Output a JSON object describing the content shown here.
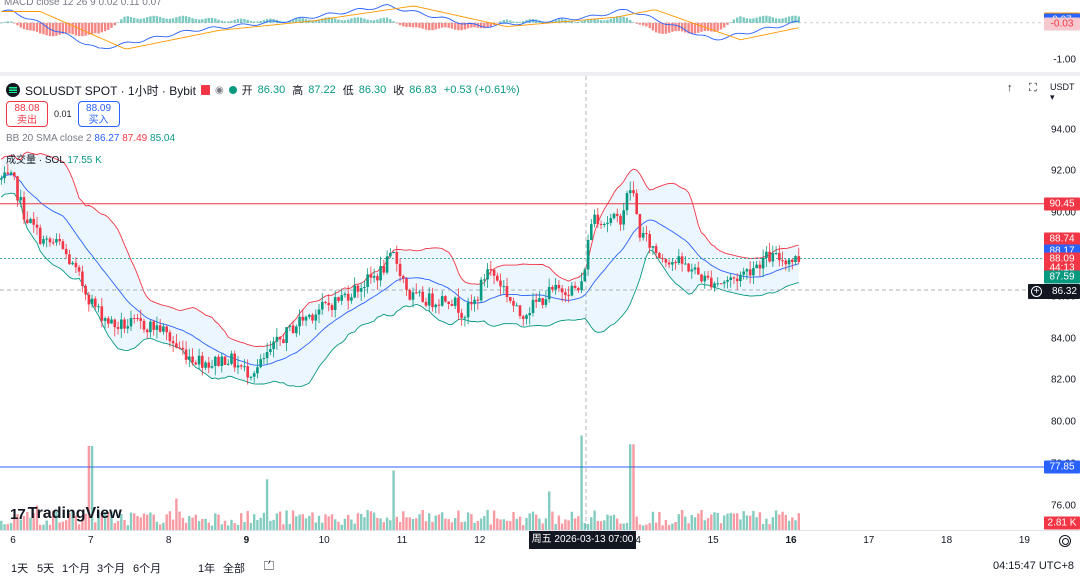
{
  "macd": {
    "legend_fragment": "MACD close 12 26 9",
    "values": [
      "0.02",
      "0.11",
      "0.07"
    ],
    "axis": [
      "-1.00"
    ],
    "pills": [
      {
        "text": "0.10",
        "color": "#ff9800",
        "price": 0.1
      },
      {
        "text": "0.07",
        "color": "#2962ff",
        "price": 0.07
      },
      {
        "text": "-0.03",
        "color": "#f7c9cf",
        "text_color": "#f23645",
        "price": -0.03
      }
    ]
  },
  "legend": {
    "symbol": "SOLUSDT SPOT · 1小时 · Bybit",
    "open_label": "开",
    "open": "86.30",
    "high_label": "高",
    "high": "87.22",
    "low_label": "低",
    "low": "86.30",
    "close_label": "收",
    "close": "86.83",
    "change": "+0.53 (+0.61%)"
  },
  "trade": {
    "sell_price": "88.08",
    "sell_label": "卖出",
    "spread": "0.01",
    "buy_price": "88.09",
    "buy_label": "买入"
  },
  "bb": {
    "label": "BB 20 SMA close 2",
    "basis": "86.27",
    "upper": "87.49",
    "lower": "85.04"
  },
  "volume": {
    "label": "成交量 · SOL",
    "value": "17.55 K",
    "pill": "2.81 K"
  },
  "price_axis": {
    "currency": "USDT",
    "ticks": [
      "94.00",
      "92.00",
      "90.00",
      "88.00",
      "86.00",
      "84.00",
      "82.00",
      "80.00",
      "78.00",
      "76.00"
    ],
    "pills": [
      {
        "text": "90.45",
        "color": "#f23645",
        "price": 90.45
      },
      {
        "text": "88.74",
        "color": "#f23645",
        "price": 88.74
      },
      {
        "text": "88.17",
        "color": "#2962ff",
        "price": 88.17
      },
      {
        "text": "88.09",
        "color": "#f23645",
        "price": 87.82
      },
      {
        "text": "44:13",
        "color": "#f23645",
        "price": 87.38
      },
      {
        "text": "87.59",
        "color": "#089981",
        "price": 86.92
      },
      {
        "text": "77.85",
        "color": "#2962ff",
        "price": 77.85
      }
    ],
    "crosshair_price": "86.32",
    "hlines": [
      {
        "price": 90.45,
        "color": "#f23645"
      },
      {
        "price": 77.85,
        "color": "#2962ff"
      }
    ]
  },
  "time_axis": {
    "ticks": [
      "6",
      "7",
      "8",
      "9",
      "10",
      "11",
      "12",
      "14",
      "15",
      "16",
      "17",
      "18",
      "19"
    ],
    "crosshair_time": "周五 2026-03-13   07:00"
  },
  "branding": {
    "name": "TradingView"
  },
  "bottom_bar": {
    "ranges": [
      "1天",
      "5天",
      "1个月",
      "3个月",
      "6个月",
      "1年",
      "全部"
    ],
    "clock": "04:15:47 UTC+8"
  },
  "colors": {
    "up": "#089981",
    "down": "#f23645",
    "bb_upper": "#f23645",
    "bb_basis": "#2962ff",
    "bb_lower": "#089981",
    "bb_fill": "#2196f3"
  },
  "chart_data": {
    "type": "candlestick",
    "interval": "1h",
    "candles_per_day": 24,
    "x_start_day": 5.85,
    "anchors": [
      [
        6.0,
        91.6
      ],
      [
        6.15,
        89.9
      ],
      [
        6.4,
        88.6
      ],
      [
        6.6,
        88.5
      ],
      [
        6.85,
        86.9
      ],
      [
        7.0,
        85.8
      ],
      [
        7.1,
        85.3
      ],
      [
        7.3,
        84.6
      ],
      [
        7.6,
        84.7
      ],
      [
        7.9,
        84.5
      ],
      [
        8.1,
        83.6
      ],
      [
        8.3,
        83.1
      ],
      [
        8.55,
        82.8
      ],
      [
        8.75,
        83.1
      ],
      [
        9.0,
        82.4
      ],
      [
        9.15,
        82.6
      ],
      [
        9.4,
        83.8
      ],
      [
        9.7,
        84.9
      ],
      [
        9.95,
        85.4
      ],
      [
        10.2,
        85.9
      ],
      [
        10.5,
        86.6
      ],
      [
        10.7,
        87.1
      ],
      [
        10.9,
        88.0
      ],
      [
        11.1,
        86.0
      ],
      [
        11.4,
        85.8
      ],
      [
        11.6,
        86.0
      ],
      [
        11.8,
        85.2
      ],
      [
        11.95,
        85.8
      ],
      [
        12.1,
        87.4
      ],
      [
        12.3,
        86.5
      ],
      [
        12.5,
        85.1
      ],
      [
        12.7,
        85.6
      ],
      [
        12.9,
        86.2
      ],
      [
        13.1,
        86.4
      ],
      [
        13.3,
        86.3
      ],
      [
        13.45,
        90.0
      ],
      [
        13.6,
        89.6
      ],
      [
        13.8,
        89.7
      ],
      [
        13.95,
        91.4
      ],
      [
        14.05,
        89.1
      ],
      [
        14.3,
        88.0
      ],
      [
        14.5,
        87.7
      ],
      [
        14.7,
        87.4
      ],
      [
        14.9,
        86.8
      ],
      [
        15.1,
        86.7
      ],
      [
        15.3,
        86.9
      ],
      [
        15.5,
        87.4
      ],
      [
        15.7,
        87.9
      ],
      [
        15.9,
        87.8
      ],
      [
        16.1,
        87.8
      ]
    ],
    "volume_spikes": [
      [
        7.0,
        4.8
      ],
      [
        9.25,
        2.9
      ],
      [
        10.9,
        3.4
      ],
      [
        13.3,
        5.4
      ],
      [
        13.95,
        4.9
      ],
      [
        12.9,
        2.2
      ],
      [
        8.1,
        1.8
      ],
      [
        6.3,
        1.4
      ]
    ],
    "macd_waves": {
      "dif": [
        [
          6.0,
          0.3
        ],
        [
          7.1,
          -0.7
        ],
        [
          8.3,
          -0.2
        ],
        [
          9.5,
          0.05
        ],
        [
          10.8,
          0.45
        ],
        [
          12.0,
          -0.1
        ],
        [
          13.4,
          0.15
        ],
        [
          13.9,
          0.35
        ],
        [
          15.0,
          -0.45
        ],
        [
          16.1,
          0.02
        ]
      ]
    },
    "price_range": [
      75.0,
      95.5
    ],
    "macd_range": [
      -1.2,
      0.5
    ]
  }
}
